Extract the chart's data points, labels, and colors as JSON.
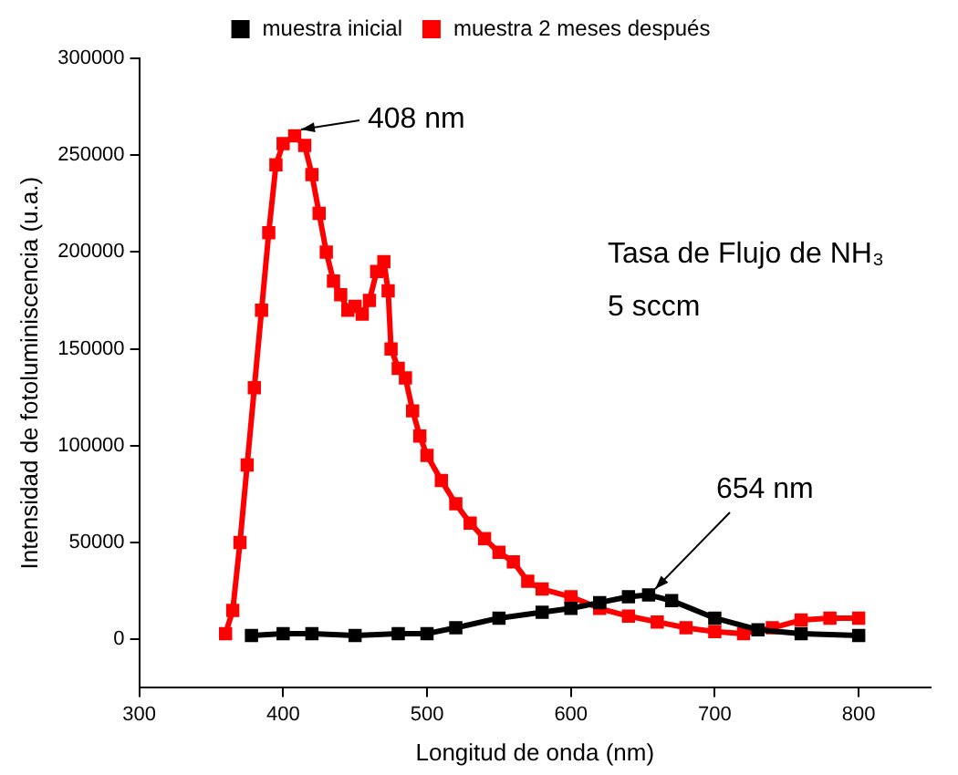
{
  "chart_data": {
    "type": "line",
    "xlabel": "Longitud de onda (nm)",
    "ylabel": "Intensidad de fotoluminiscencia (u.a.)",
    "xlim": [
      300,
      850
    ],
    "xticks": [
      300,
      400,
      500,
      600,
      700,
      800
    ],
    "ylim": [
      -25000,
      300000
    ],
    "yticks": [
      0,
      50000,
      100000,
      150000,
      200000,
      250000,
      300000
    ],
    "legend": "top",
    "marker": "square",
    "grid": false,
    "annotations": [
      {
        "text": "408 nm",
        "x": 408,
        "y": 260000
      },
      {
        "text": "654 nm",
        "x": 654,
        "y": 23000
      },
      "Tasa de Flujo de NH₃",
      "5 sccm"
    ],
    "series": [
      {
        "name": "muestra inicial",
        "color": "#000000",
        "x": [
          378,
          400,
          420,
          450,
          480,
          500,
          520,
          550,
          580,
          600,
          620,
          640,
          654,
          670,
          700,
          730,
          760,
          800
        ],
        "values": [
          2000,
          3000,
          3000,
          2000,
          3000,
          3000,
          6000,
          11000,
          14000,
          16000,
          19000,
          22000,
          23000,
          20000,
          11000,
          5000,
          3000,
          2000
        ]
      },
      {
        "name": "muestra 2 meses después",
        "color": "#ff0000",
        "x": [
          360,
          365,
          370,
          375,
          380,
          385,
          390,
          395,
          400,
          408,
          415,
          420,
          425,
          430,
          435,
          440,
          445,
          450,
          455,
          460,
          465,
          470,
          473,
          475,
          480,
          485,
          490,
          495,
          500,
          510,
          520,
          530,
          540,
          550,
          560,
          570,
          580,
          600,
          620,
          640,
          660,
          680,
          700,
          720,
          740,
          760,
          780,
          800
        ],
        "values": [
          3000,
          15000,
          50000,
          90000,
          130000,
          170000,
          210000,
          245000,
          256000,
          260000,
          255000,
          240000,
          220000,
          200000,
          185000,
          178000,
          170000,
          172000,
          168000,
          175000,
          190000,
          195000,
          180000,
          150000,
          140000,
          135000,
          118000,
          105000,
          95000,
          82000,
          70000,
          60000,
          52000,
          45000,
          40000,
          30000,
          26000,
          22000,
          16000,
          12000,
          9000,
          6000,
          4000,
          3000,
          6000,
          10000,
          11000,
          11000
        ]
      }
    ]
  }
}
